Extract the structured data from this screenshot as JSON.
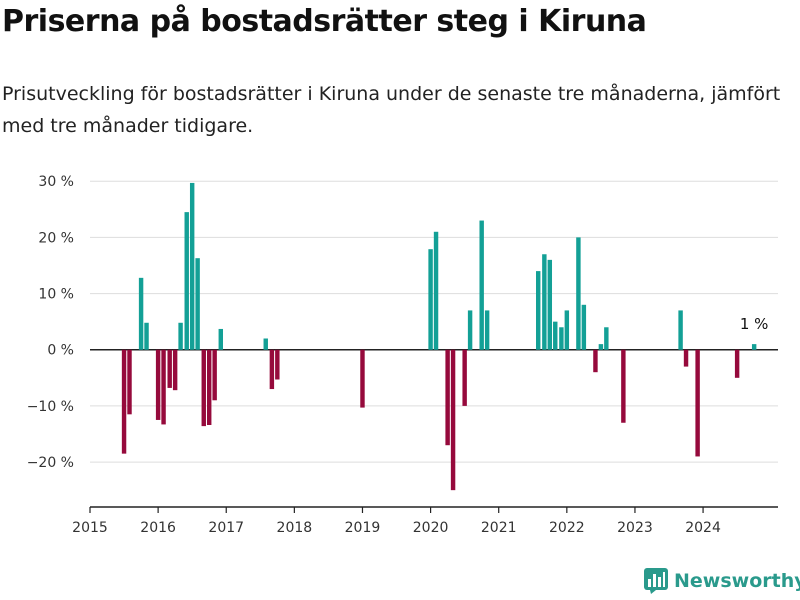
{
  "title": "Priserna på bostadsrätter steg i Kiruna",
  "subtitle": "Prisutveckling för bostadsrätter i Kiruna under de senaste tre månaderna, jämfört med tre månader tidigare.",
  "brand": {
    "name": "Newsworthy",
    "icon": "bar-chart-logo-icon"
  },
  "colors": {
    "positive": "#13a096",
    "negative": "#960a3c",
    "grid": "#dddddd",
    "axis": "#222222",
    "brand": "#2a9a8c"
  },
  "chart_data": {
    "type": "bar",
    "title": "Priserna på bostadsrätter steg i Kiruna",
    "xlabel": "",
    "ylabel": "",
    "xlim": [
      2015,
      2025.1
    ],
    "ylim": [
      -28,
      32
    ],
    "y_ticks": [
      30,
      20,
      10,
      0,
      -10,
      -20
    ],
    "y_tick_labels": [
      "30 %",
      "20 %",
      "10 %",
      "0 %",
      "−10 %",
      "−20 %"
    ],
    "x_ticks": [
      2015,
      2016,
      2017,
      2018,
      2019,
      2020,
      2021,
      2022,
      2023,
      2024
    ],
    "x_tick_labels": [
      "2015",
      "2016",
      "2017",
      "2018",
      "2019",
      "2020",
      "2021",
      "2022",
      "2023",
      "2024"
    ],
    "grid": true,
    "bar_width_years": 0.065,
    "points": [
      {
        "t": 2015.5,
        "v": -18.5
      },
      {
        "t": 2015.58,
        "v": -11.5
      },
      {
        "t": 2015.75,
        "v": 12.8
      },
      {
        "t": 2015.83,
        "v": 4.8
      },
      {
        "t": 2016.0,
        "v": -12.5
      },
      {
        "t": 2016.08,
        "v": -13.3
      },
      {
        "t": 2016.17,
        "v": -6.8
      },
      {
        "t": 2016.25,
        "v": -7.2
      },
      {
        "t": 2016.33,
        "v": 4.8
      },
      {
        "t": 2016.42,
        "v": 24.5
      },
      {
        "t": 2016.5,
        "v": 29.7
      },
      {
        "t": 2016.58,
        "v": 16.3
      },
      {
        "t": 2016.67,
        "v": -13.6
      },
      {
        "t": 2016.75,
        "v": -13.4
      },
      {
        "t": 2016.83,
        "v": -9.0
      },
      {
        "t": 2016.92,
        "v": 3.7
      },
      {
        "t": 2017.58,
        "v": 2.0
      },
      {
        "t": 2017.67,
        "v": -7.0
      },
      {
        "t": 2017.75,
        "v": -5.3
      },
      {
        "t": 2019.0,
        "v": -10.3
      },
      {
        "t": 2020.0,
        "v": 17.9
      },
      {
        "t": 2020.08,
        "v": 21.0
      },
      {
        "t": 2020.25,
        "v": -17.0
      },
      {
        "t": 2020.33,
        "v": -25.0
      },
      {
        "t": 2020.5,
        "v": -10.0
      },
      {
        "t": 2020.58,
        "v": 7.0
      },
      {
        "t": 2020.75,
        "v": 23.0
      },
      {
        "t": 2020.83,
        "v": 7.0
      },
      {
        "t": 2021.58,
        "v": 14.0
      },
      {
        "t": 2021.67,
        "v": 17.0
      },
      {
        "t": 2021.75,
        "v": 16.0
      },
      {
        "t": 2021.83,
        "v": 5.0
      },
      {
        "t": 2021.92,
        "v": 4.0
      },
      {
        "t": 2022.0,
        "v": 7.0
      },
      {
        "t": 2022.17,
        "v": 20.0
      },
      {
        "t": 2022.25,
        "v": 8.0
      },
      {
        "t": 2022.42,
        "v": -4.0
      },
      {
        "t": 2022.5,
        "v": 1.0
      },
      {
        "t": 2022.58,
        "v": 4.0
      },
      {
        "t": 2022.83,
        "v": -13.0
      },
      {
        "t": 2023.67,
        "v": 7.0
      },
      {
        "t": 2023.75,
        "v": -3.0
      },
      {
        "t": 2023.92,
        "v": -19.0
      },
      {
        "t": 2024.5,
        "v": -5.0
      },
      {
        "t": 2024.75,
        "v": 1.0
      }
    ],
    "annotation": {
      "t": 2024.75,
      "v": 1.0,
      "text": "1 %"
    }
  }
}
